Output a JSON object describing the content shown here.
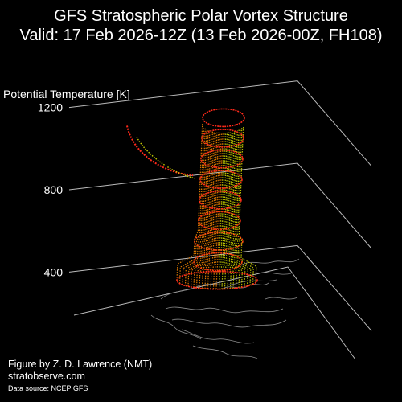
{
  "header": {
    "title": "GFS Stratospheric Polar Vortex Structure",
    "subtitle": "Valid: 17 Feb 2026-12Z  (13 Feb 2026-00Z, FH108)"
  },
  "chart_data": {
    "type": "3d-isosurface",
    "zlabel": "Potential Temperature [K]",
    "z_ticks": [
      400,
      800,
      1200
    ],
    "zlim": [
      300,
      1300
    ],
    "grid": true,
    "colors": {
      "background": "#000000",
      "axes": "#bbbbbb",
      "coastlines": "#8a8a8a",
      "vortex_edge": "#ff2a1a",
      "vortex_fill_low": "#ff8c00",
      "vortex_fill_high": "#d9e000"
    },
    "vortex": {
      "rings": [
        {
          "theta": 360,
          "color": "#ff2a1a"
        },
        {
          "theta": 450,
          "color": "#ff3a10"
        },
        {
          "theta": 550,
          "color": "#ff4a10"
        },
        {
          "theta": 650,
          "color": "#ff3010"
        },
        {
          "theta": 750,
          "color": "#ff2a1a"
        },
        {
          "theta": 850,
          "color": "#ff2a1a"
        },
        {
          "theta": 950,
          "color": "#ff2a1a"
        },
        {
          "theta": 1050,
          "color": "#ff2a1a"
        },
        {
          "theta": 1150,
          "color": "#ff2a1a"
        }
      ],
      "detached_lobe": {
        "theta_range": [
          870,
          1150
        ],
        "color": "#ff2a1a"
      }
    }
  },
  "credits": {
    "author": "Figure by Z. D. Lawrence (NMT)",
    "site": "stratobserve.com",
    "source": "Data source: NCEP GFS"
  }
}
